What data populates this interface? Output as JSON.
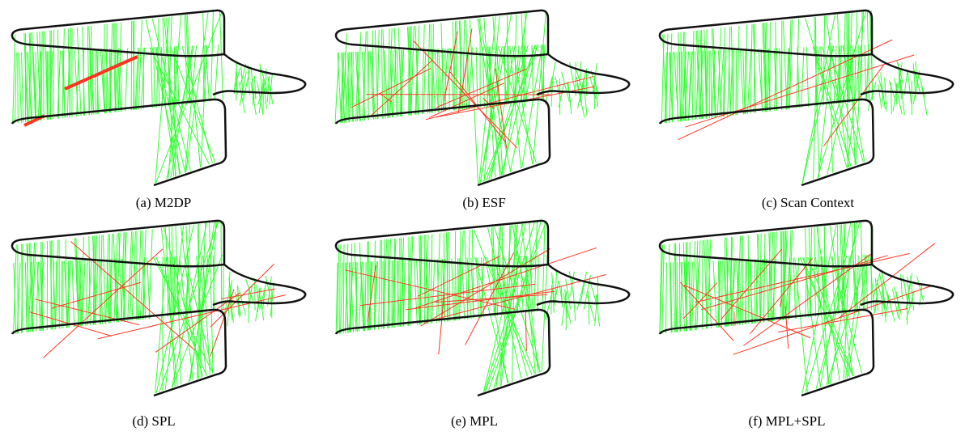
{
  "panels": [
    {
      "caption": "(a) M2DP"
    },
    {
      "caption": "(b) ESF"
    },
    {
      "caption": "(c) Scan Context"
    },
    {
      "caption": "(d) SPL"
    },
    {
      "caption": "(e) MPL"
    },
    {
      "caption": "(f) MPL+SPL"
    }
  ]
}
